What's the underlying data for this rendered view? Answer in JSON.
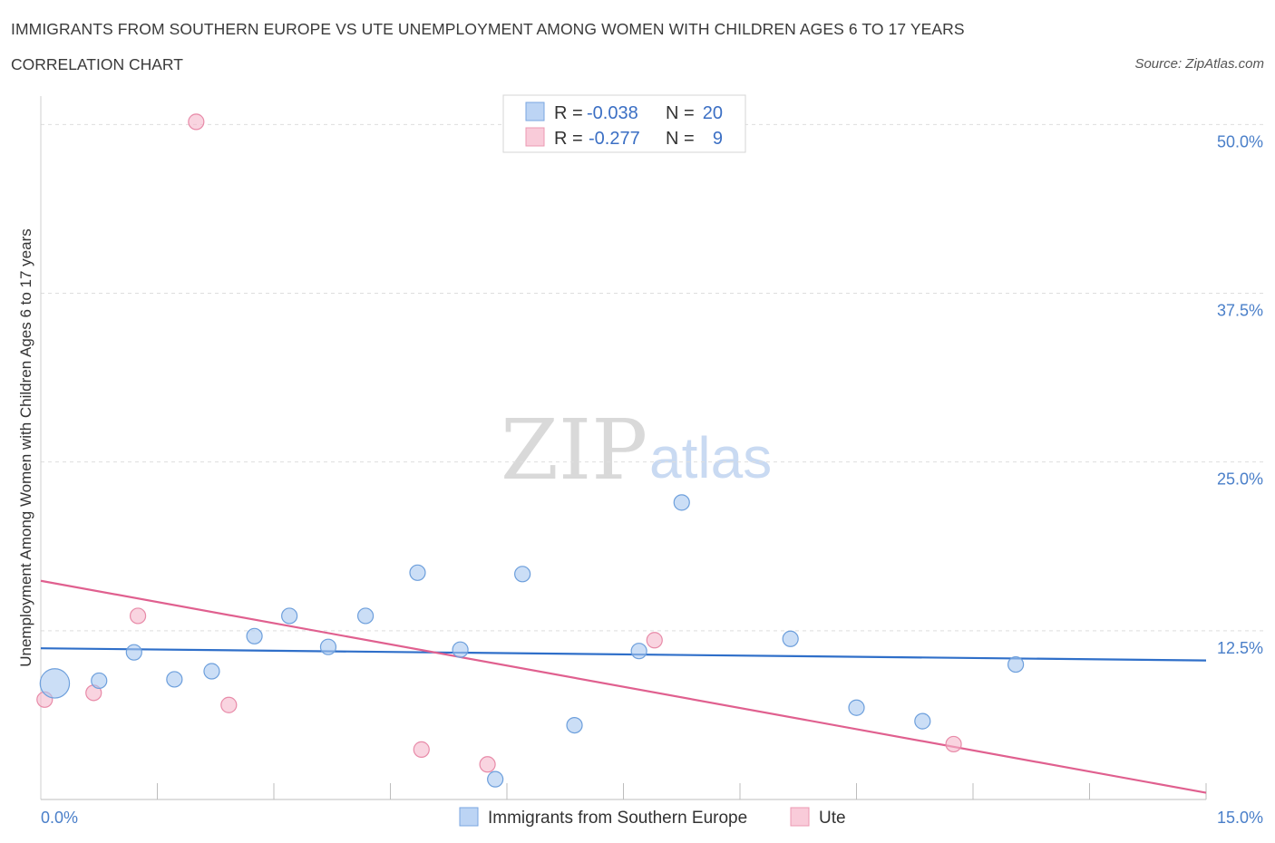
{
  "header": {
    "title": "IMMIGRANTS FROM SOUTHERN EUROPE VS UTE UNEMPLOYMENT AMONG WOMEN WITH CHILDREN AGES 6 TO 17 YEARS",
    "subtitle": "CORRELATION CHART",
    "source": "Source: ZipAtlas.com"
  },
  "watermark": {
    "zip": "ZIP",
    "atlas": "atlas"
  },
  "legend": {
    "rows": [
      {
        "r_label": "R =",
        "r_value": "-0.038",
        "n_label": "N =",
        "n_value": "20",
        "color": "#a9c8f0"
      },
      {
        "r_label": "R =",
        "r_value": "-0.277",
        "n_label": "N =",
        "n_value": "9",
        "color": "#f5b8cb"
      }
    ]
  },
  "chart_data": {
    "type": "scatter",
    "title": "IMMIGRANTS FROM SOUTHERN EUROPE VS UTE UNEMPLOYMENT AMONG WOMEN WITH CHILDREN AGES 6 TO 17 YEARS",
    "subtitle": "CORRELATION CHART",
    "xlabel": "",
    "ylabel": "Unemployment Among Women with Children Ages 6 to 17 years",
    "xlim": [
      0,
      15
    ],
    "ylim": [
      0,
      50
    ],
    "x_tick_labels": [
      "0.0%",
      "15.0%"
    ],
    "y_ticks": [
      12.5,
      25.0,
      37.5,
      50.0
    ],
    "y_tick_labels": [
      "12.5%",
      "25.0%",
      "37.5%",
      "50.0%"
    ],
    "grid": true,
    "legend_position": "bottom",
    "series": [
      {
        "name": "Immigrants from Southern Europe",
        "color": "#a9c8f0",
        "stroke": "#6d9fdc",
        "line_color": "#2f6fc9",
        "points": [
          {
            "x": 0.18,
            "y": 8.6,
            "size": 3
          },
          {
            "x": 0.75,
            "y": 8.8,
            "size": 1
          },
          {
            "x": 1.2,
            "y": 10.9,
            "size": 1
          },
          {
            "x": 1.72,
            "y": 8.9,
            "size": 1
          },
          {
            "x": 2.2,
            "y": 9.5,
            "size": 1
          },
          {
            "x": 2.75,
            "y": 12.1,
            "size": 1
          },
          {
            "x": 3.2,
            "y": 13.6,
            "size": 1
          },
          {
            "x": 3.7,
            "y": 11.3,
            "size": 1
          },
          {
            "x": 4.18,
            "y": 13.6,
            "size": 1
          },
          {
            "x": 4.85,
            "y": 16.8,
            "size": 1
          },
          {
            "x": 5.4,
            "y": 11.1,
            "size": 1
          },
          {
            "x": 5.85,
            "y": 1.5,
            "size": 1
          },
          {
            "x": 6.2,
            "y": 16.7,
            "size": 1
          },
          {
            "x": 6.87,
            "y": 5.5,
            "size": 1
          },
          {
            "x": 7.7,
            "y": 11.0,
            "size": 1
          },
          {
            "x": 8.25,
            "y": 22.0,
            "size": 1
          },
          {
            "x": 9.65,
            "y": 11.9,
            "size": 1
          },
          {
            "x": 10.5,
            "y": 6.8,
            "size": 1
          },
          {
            "x": 11.35,
            "y": 5.8,
            "size": 1
          },
          {
            "x": 12.55,
            "y": 10.0,
            "size": 1
          }
        ],
        "trend": {
          "x": [
            0,
            15
          ],
          "y": [
            11.2,
            10.3
          ]
        }
      },
      {
        "name": "Ute",
        "color": "#f5b8cb",
        "stroke": "#e88aa8",
        "line_color": "#e0608f",
        "points": [
          {
            "x": 0.05,
            "y": 7.4,
            "size": 1
          },
          {
            "x": 0.68,
            "y": 7.9,
            "size": 1
          },
          {
            "x": 1.25,
            "y": 13.6,
            "size": 1
          },
          {
            "x": 2.0,
            "y": 50.2,
            "size": 1
          },
          {
            "x": 2.42,
            "y": 7.0,
            "size": 1
          },
          {
            "x": 4.9,
            "y": 3.7,
            "size": 1
          },
          {
            "x": 5.75,
            "y": 2.6,
            "size": 1
          },
          {
            "x": 7.9,
            "y": 11.8,
            "size": 1
          },
          {
            "x": 11.75,
            "y": 4.1,
            "size": 1
          }
        ],
        "trend": {
          "x": [
            0,
            15
          ],
          "y": [
            16.2,
            0.5
          ]
        }
      }
    ]
  }
}
